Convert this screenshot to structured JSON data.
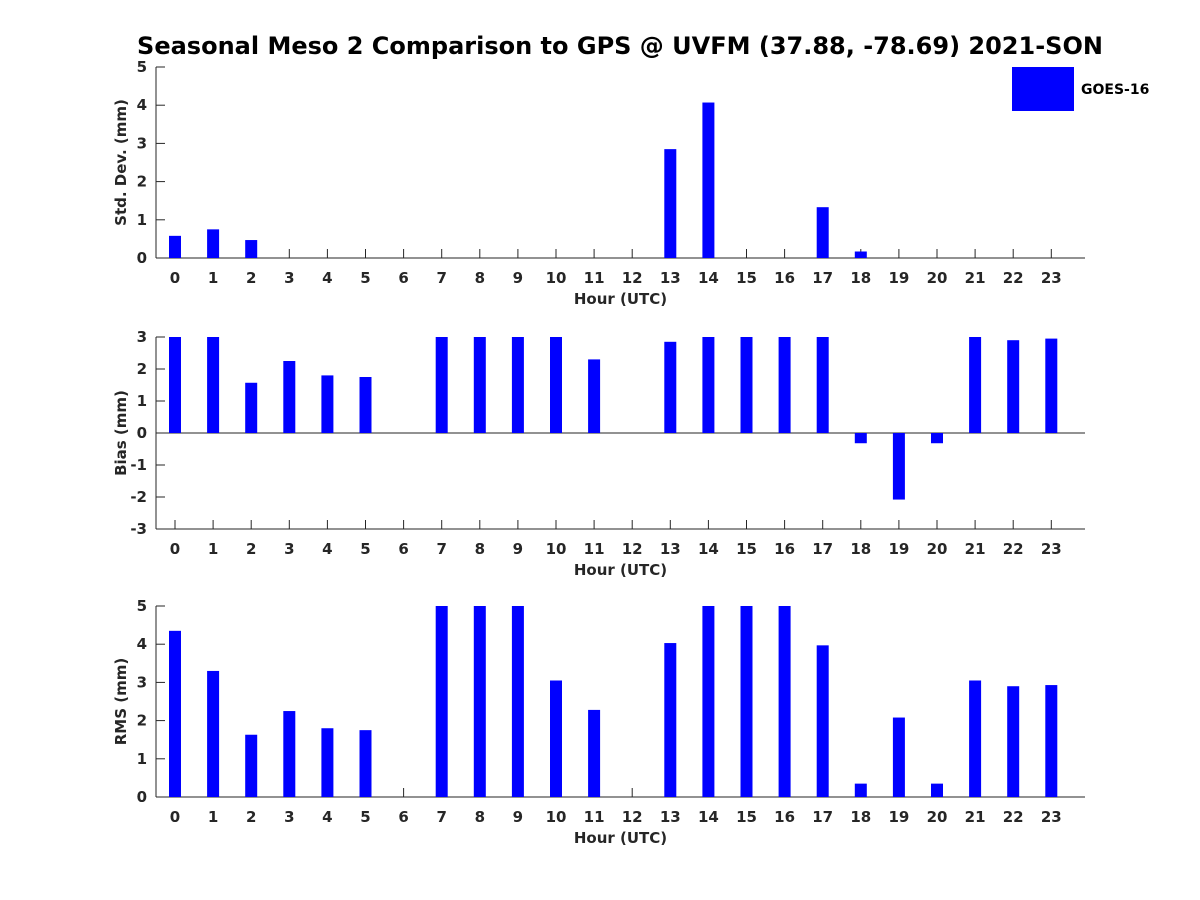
{
  "title": "Seasonal Meso 2 Comparison to GPS @ UVFM (37.88, -78.69) 2021-SON",
  "legend": {
    "label": "GOES-16",
    "color": "#0000ff"
  },
  "chart_data": [
    {
      "type": "bar",
      "name": "std-dev",
      "title": "",
      "xlabel": "Hour (UTC)",
      "ylabel": "Std. Dev. (mm)",
      "ylim": [
        0,
        5
      ],
      "yticks": [
        0,
        1,
        2,
        3,
        4,
        5
      ],
      "categories": [
        "0",
        "1",
        "2",
        "3",
        "4",
        "5",
        "6",
        "7",
        "8",
        "9",
        "10",
        "11",
        "12",
        "13",
        "14",
        "15",
        "16",
        "17",
        "18",
        "19",
        "20",
        "21",
        "22",
        "23"
      ],
      "series": [
        {
          "name": "GOES-16",
          "color": "#0000ff",
          "values": [
            0.58,
            0.75,
            0.47,
            0,
            0,
            0,
            0,
            0,
            0,
            0,
            0,
            0,
            0,
            2.85,
            4.07,
            0,
            0,
            1.33,
            0.17,
            0,
            0,
            0,
            0,
            0
          ]
        }
      ]
    },
    {
      "type": "bar",
      "name": "bias",
      "title": "",
      "xlabel": "Hour (UTC)",
      "ylabel": "Bias (mm)",
      "ylim": [
        -3,
        3
      ],
      "yticks": [
        -3,
        -2,
        -1,
        0,
        1,
        2,
        3
      ],
      "categories": [
        "0",
        "1",
        "2",
        "3",
        "4",
        "5",
        "6",
        "7",
        "8",
        "9",
        "10",
        "11",
        "12",
        "13",
        "14",
        "15",
        "16",
        "17",
        "18",
        "19",
        "20",
        "21",
        "22",
        "23"
      ],
      "series": [
        {
          "name": "GOES-16",
          "color": "#0000ff",
          "values": [
            3,
            3,
            1.57,
            2.25,
            1.8,
            1.75,
            0,
            3,
            3,
            3,
            3,
            2.3,
            0,
            2.85,
            3,
            3,
            3,
            3,
            -0.32,
            -2.08,
            -0.32,
            3,
            2.9,
            2.95
          ]
        }
      ]
    },
    {
      "type": "bar",
      "name": "rms",
      "title": "",
      "xlabel": "Hour (UTC)",
      "ylabel": "RMS (mm)",
      "ylim": [
        0,
        5
      ],
      "yticks": [
        0,
        1,
        2,
        3,
        4,
        5
      ],
      "categories": [
        "0",
        "1",
        "2",
        "3",
        "4",
        "5",
        "6",
        "7",
        "8",
        "9",
        "10",
        "11",
        "12",
        "13",
        "14",
        "15",
        "16",
        "17",
        "18",
        "19",
        "20",
        "21",
        "22",
        "23"
      ],
      "series": [
        {
          "name": "GOES-16",
          "color": "#0000ff",
          "values": [
            4.35,
            3.3,
            1.63,
            2.25,
            1.8,
            1.75,
            0,
            5,
            5,
            5,
            3.05,
            2.28,
            0,
            4.03,
            5,
            5,
            5,
            3.97,
            0.35,
            2.08,
            0.35,
            3.05,
            2.9,
            2.93
          ]
        }
      ]
    }
  ]
}
